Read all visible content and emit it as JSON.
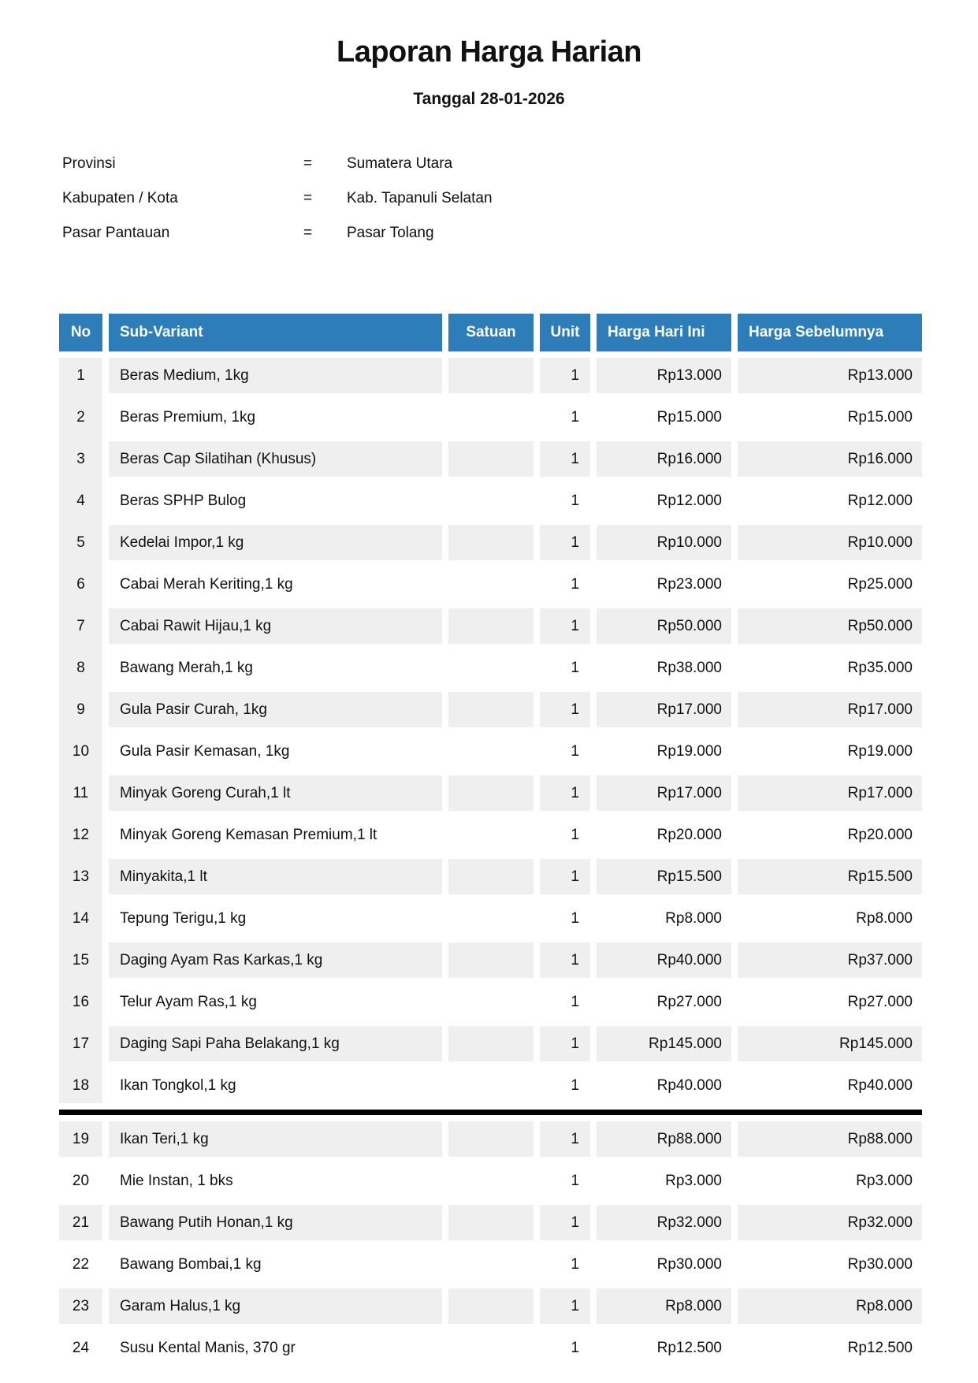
{
  "title": "Laporan Harga Harian",
  "subtitle": "Tanggal 28-01-2026",
  "info": {
    "rows": [
      {
        "label": "Provinsi",
        "separator": "=",
        "value": "Sumatera Utara"
      },
      {
        "label": "Kabupaten / Kota",
        "separator": "=",
        "value": "Kab. Tapanuli Selatan"
      },
      {
        "label": "Pasar Pantauan",
        "separator": "=",
        "value": "Pasar Tolang"
      }
    ]
  },
  "table": {
    "columns": [
      "No",
      "Sub-Variant",
      "Satuan",
      "Unit",
      "Harga Hari Ini",
      "Harga Sebelumnya"
    ],
    "page_break_after_row": 18,
    "rows": [
      {
        "no": "1",
        "sub_variant": "Beras Medium, 1kg",
        "satuan": "",
        "unit": "1",
        "harga_hari_ini": "Rp13.000",
        "harga_sebelumnya": "Rp13.000"
      },
      {
        "no": "2",
        "sub_variant": "Beras Premium, 1kg",
        "satuan": "",
        "unit": "1",
        "harga_hari_ini": "Rp15.000",
        "harga_sebelumnya": "Rp15.000"
      },
      {
        "no": "3",
        "sub_variant": "Beras Cap Silatihan (Khusus)",
        "satuan": "",
        "unit": "1",
        "harga_hari_ini": "Rp16.000",
        "harga_sebelumnya": "Rp16.000"
      },
      {
        "no": "4",
        "sub_variant": "Beras SPHP Bulog",
        "satuan": "",
        "unit": "1",
        "harga_hari_ini": "Rp12.000",
        "harga_sebelumnya": "Rp12.000"
      },
      {
        "no": "5",
        "sub_variant": "Kedelai Impor,1 kg",
        "satuan": "",
        "unit": "1",
        "harga_hari_ini": "Rp10.000",
        "harga_sebelumnya": "Rp10.000"
      },
      {
        "no": "6",
        "sub_variant": "Cabai Merah Keriting,1 kg",
        "satuan": "",
        "unit": "1",
        "harga_hari_ini": "Rp23.000",
        "harga_sebelumnya": "Rp25.000"
      },
      {
        "no": "7",
        "sub_variant": "Cabai Rawit Hijau,1 kg",
        "satuan": "",
        "unit": "1",
        "harga_hari_ini": "Rp50.000",
        "harga_sebelumnya": "Rp50.000"
      },
      {
        "no": "8",
        "sub_variant": "Bawang Merah,1 kg",
        "satuan": "",
        "unit": "1",
        "harga_hari_ini": "Rp38.000",
        "harga_sebelumnya": "Rp35.000"
      },
      {
        "no": "9",
        "sub_variant": "Gula Pasir Curah, 1kg",
        "satuan": "",
        "unit": "1",
        "harga_hari_ini": "Rp17.000",
        "harga_sebelumnya": "Rp17.000"
      },
      {
        "no": "10",
        "sub_variant": "Gula Pasir Kemasan, 1kg",
        "satuan": "",
        "unit": "1",
        "harga_hari_ini": "Rp19.000",
        "harga_sebelumnya": "Rp19.000"
      },
      {
        "no": "11",
        "sub_variant": "Minyak Goreng Curah,1 lt",
        "satuan": "",
        "unit": "1",
        "harga_hari_ini": "Rp17.000",
        "harga_sebelumnya": "Rp17.000"
      },
      {
        "no": "12",
        "sub_variant": "Minyak Goreng Kemasan Premium,1 lt",
        "satuan": "",
        "unit": "1",
        "harga_hari_ini": "Rp20.000",
        "harga_sebelumnya": "Rp20.000"
      },
      {
        "no": "13",
        "sub_variant": "Minyakita,1 lt",
        "satuan": "",
        "unit": "1",
        "harga_hari_ini": "Rp15.500",
        "harga_sebelumnya": "Rp15.500"
      },
      {
        "no": "14",
        "sub_variant": "Tepung Terigu,1 kg",
        "satuan": "",
        "unit": "1",
        "harga_hari_ini": "Rp8.000",
        "harga_sebelumnya": "Rp8.000"
      },
      {
        "no": "15",
        "sub_variant": "Daging Ayam Ras Karkas,1 kg",
        "satuan": "",
        "unit": "1",
        "harga_hari_ini": "Rp40.000",
        "harga_sebelumnya": "Rp37.000"
      },
      {
        "no": "16",
        "sub_variant": "Telur Ayam Ras,1 kg",
        "satuan": "",
        "unit": "1",
        "harga_hari_ini": "Rp27.000",
        "harga_sebelumnya": "Rp27.000"
      },
      {
        "no": "17",
        "sub_variant": "Daging Sapi Paha Belakang,1 kg",
        "satuan": "",
        "unit": "1",
        "harga_hari_ini": "Rp145.000",
        "harga_sebelumnya": "Rp145.000"
      },
      {
        "no": "18",
        "sub_variant": "Ikan Tongkol,1 kg",
        "satuan": "",
        "unit": "1",
        "harga_hari_ini": "Rp40.000",
        "harga_sebelumnya": "Rp40.000"
      },
      {
        "no": "19",
        "sub_variant": "Ikan Teri,1 kg",
        "satuan": "",
        "unit": "1",
        "harga_hari_ini": "Rp88.000",
        "harga_sebelumnya": "Rp88.000"
      },
      {
        "no": "20",
        "sub_variant": "Mie Instan, 1 bks",
        "satuan": "",
        "unit": "1",
        "harga_hari_ini": "Rp3.000",
        "harga_sebelumnya": "Rp3.000"
      },
      {
        "no": "21",
        "sub_variant": "Bawang Putih Honan,1 kg",
        "satuan": "",
        "unit": "1",
        "harga_hari_ini": "Rp32.000",
        "harga_sebelumnya": "Rp32.000"
      },
      {
        "no": "22",
        "sub_variant": "Bawang Bombai,1 kg",
        "satuan": "",
        "unit": "1",
        "harga_hari_ini": "Rp30.000",
        "harga_sebelumnya": "Rp30.000"
      },
      {
        "no": "23",
        "sub_variant": "Garam Halus,1 kg",
        "satuan": "",
        "unit": "1",
        "harga_hari_ini": "Rp8.000",
        "harga_sebelumnya": "Rp8.000"
      },
      {
        "no": "24",
        "sub_variant": "Susu Kental Manis, 370 gr",
        "satuan": "",
        "unit": "1",
        "harga_hari_ini": "Rp12.500",
        "harga_sebelumnya": "Rp12.500"
      }
    ]
  },
  "colors": {
    "header_bg": "#2D7EB8",
    "row_stripe": "#EFEFEF",
    "divider": "#000000"
  }
}
